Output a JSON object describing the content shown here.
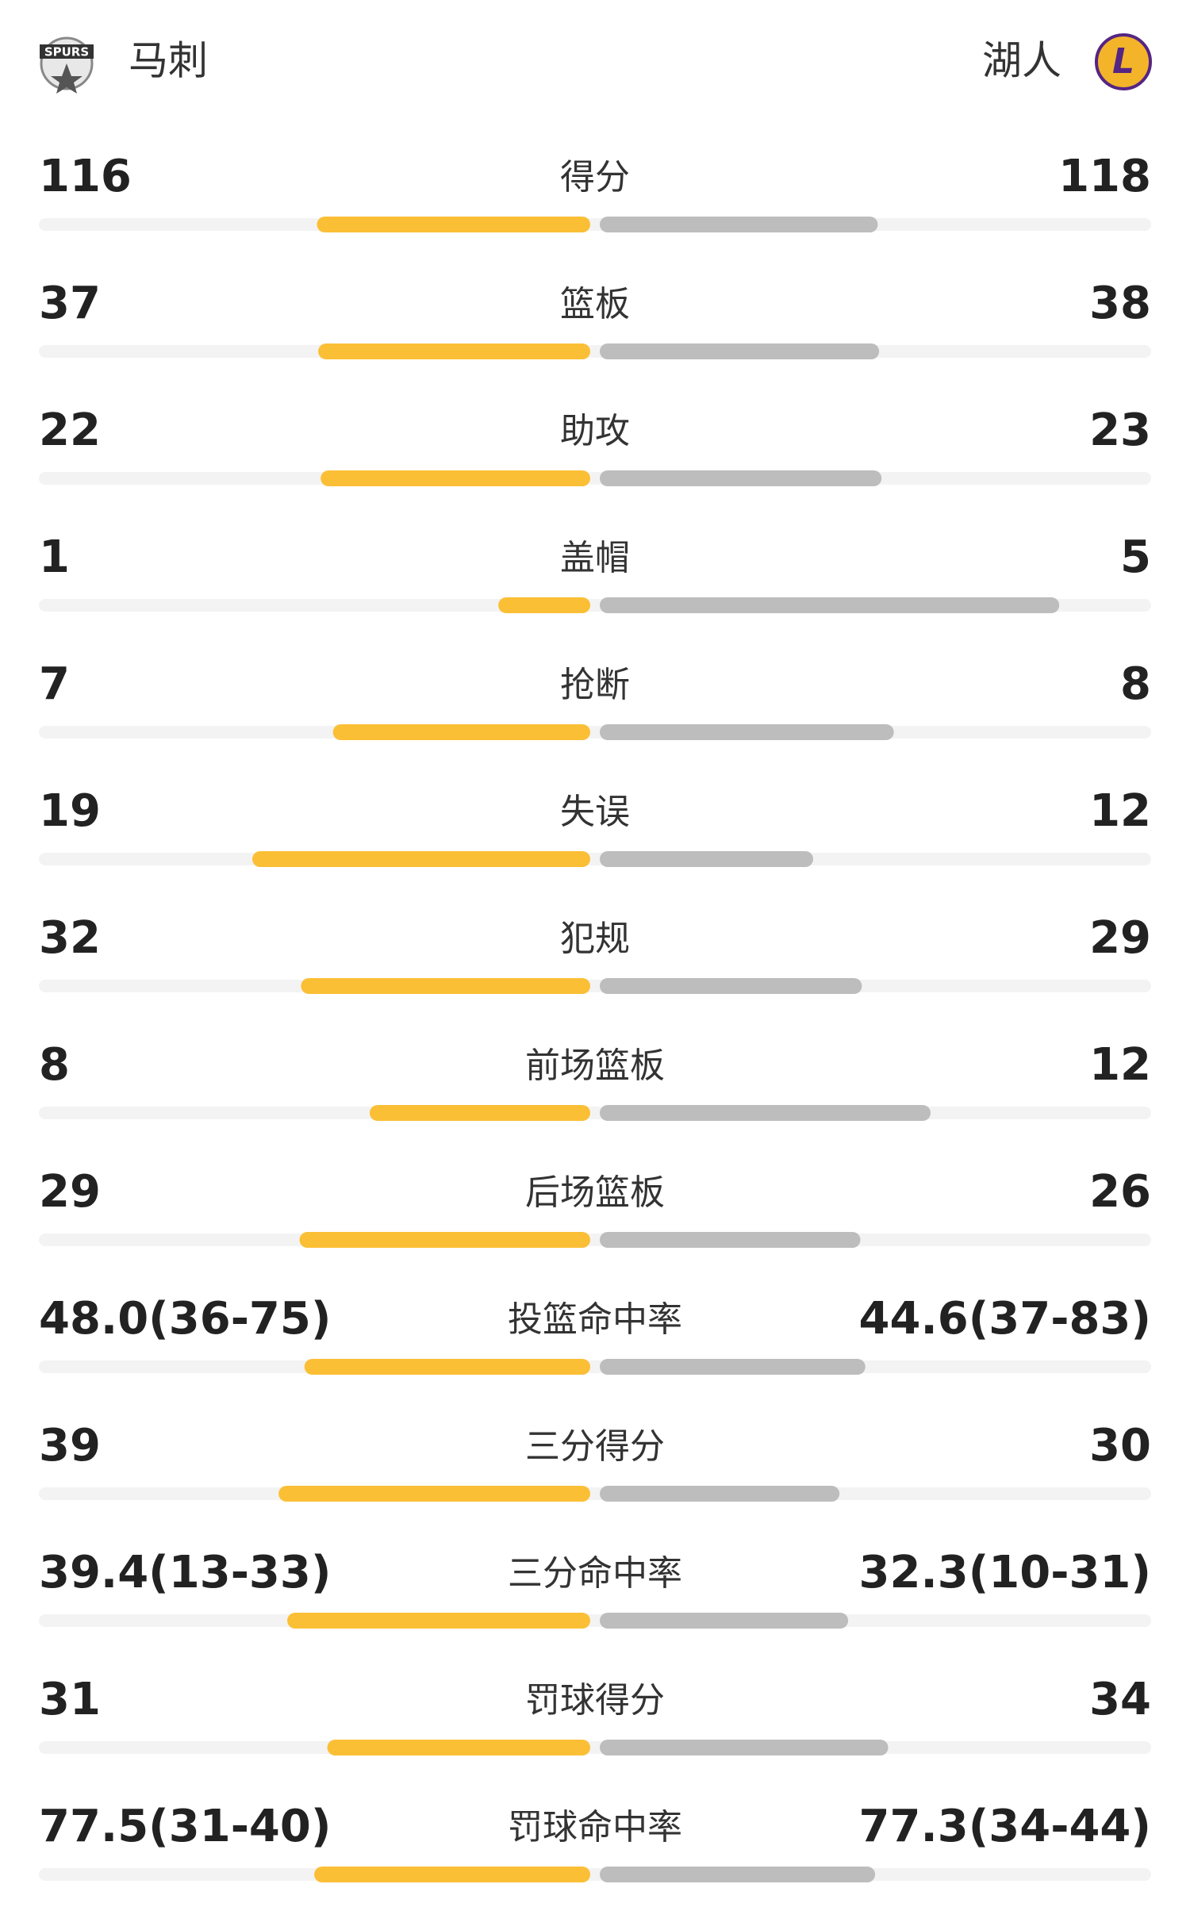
{
  "header": {
    "left_team": "马刺",
    "right_team": "湖人"
  },
  "rows": [
    {
      "label": "得分",
      "left": 116,
      "right": 118
    },
    {
      "label": "篮板",
      "left": 37,
      "right": 38
    },
    {
      "label": "助攻",
      "left": 22,
      "right": 23
    },
    {
      "label": "盖帽",
      "left": 1,
      "right": 5
    },
    {
      "label": "抢断",
      "left": 7,
      "right": 8
    },
    {
      "label": "失误",
      "left": 19,
      "right": 12
    },
    {
      "label": "犯规",
      "left": 32,
      "right": 29
    },
    {
      "label": "前场篮板",
      "left": 8,
      "right": 12
    },
    {
      "label": "后场篮板",
      "left": 29,
      "right": 26
    },
    {
      "label": "投篮命中率",
      "left": 48.0,
      "left_label": "48.0(36-75)",
      "right": 44.6,
      "right_label": "44.6(37-83)"
    },
    {
      "label": "三分得分",
      "left": 39,
      "right": 30
    },
    {
      "label": "三分命中率",
      "left": 39.4,
      "left_label": "39.4(13-33)",
      "right": 32.3,
      "right_label": "32.3(10-31)"
    },
    {
      "label": "罚球得分",
      "left": 31,
      "right": 34
    },
    {
      "label": "罚球命中率",
      "left": 77.5,
      "left_label": "77.5(31-40)",
      "right": 77.3,
      "right_label": "77.3(34-44)"
    }
  ]
}
